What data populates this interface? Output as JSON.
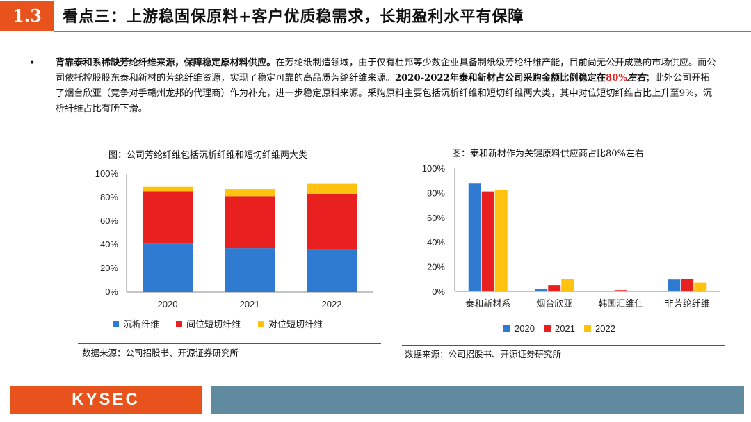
{
  "header": {
    "section": "1.3",
    "title": "看点三：上游稳固保原料+客户优质稳需求，长期盈利水平有保障"
  },
  "bullet": {
    "dot": "•",
    "lead": "背靠泰和系稀缺芳纶纤维来源，保障稳定原材料供应。",
    "text1": "在芳纶纸制造领域，由于仅有杜邦等少数企业具备制纸级芳纶纤维产能，目前尚无公开成熟的市场供应。而公司依托控股股东泰和新材的芳纶纤维资源，实现了稳定可靠的高品质芳纶纤维来源。",
    "bold2": "2020-2022年泰和新材占公司采购金额比例稳定在",
    "highlight": "80%",
    "italic2": "左右",
    "text2": "；此外公司开拓了烟台欣亚（竞争对手赣州龙邦的代理商）作为补充，进一步稳定原料来源。采购原料主要包括沉析纤维和短切纤维两大类，其中对位短切纤维占比上升至9%，沉析纤维占比有所下滑。"
  },
  "left_chart": {
    "caption": "图：公司芳纶纤维包括沉析纤维和短切纤维两大类",
    "source": "数据来源：公司招股书、开源证券研究所"
  },
  "right_chart": {
    "caption": "图：泰和新材作为关键原料供应商占比80%左右",
    "source": "数据来源：公司招股书、开源证券研究所"
  },
  "footer": {
    "logo": "KYSEC"
  },
  "colors": {
    "blue": "#2e7bd1",
    "red": "#e82020",
    "yellow": "#ffc20e",
    "accent": "#e8521c"
  },
  "chart_data": [
    {
      "type": "bar",
      "stacked": true,
      "title": "图：公司芳纶纤维包括沉析纤维和短切纤维两大类",
      "categories": [
        "2020",
        "2021",
        "2022"
      ],
      "series": [
        {
          "name": "沉析纤维",
          "color": "#2e7bd1",
          "values": [
            41,
            37,
            36
          ]
        },
        {
          "name": "间位短切纤维",
          "color": "#e82020",
          "values": [
            44,
            44,
            47
          ]
        },
        {
          "name": "对位短切纤维",
          "color": "#ffc20e",
          "values": [
            4,
            6,
            9
          ]
        }
      ],
      "ylim": [
        0,
        100
      ],
      "yticks": [
        "0%",
        "20%",
        "40%",
        "60%",
        "80%",
        "100%"
      ],
      "legend": "bottom",
      "grid": false
    },
    {
      "type": "bar",
      "stacked": false,
      "title": "图：泰和新材作为关键原料供应商占比80%左右",
      "categories": [
        "泰和新材系",
        "烟台欣亚",
        "韩国汇维仕",
        "非芳纶纤维"
      ],
      "series": [
        {
          "name": "2020",
          "color": "#2e7bd1",
          "values": [
            88,
            2,
            0,
            9.5
          ]
        },
        {
          "name": "2021",
          "color": "#e82020",
          "values": [
            81,
            5,
            1,
            10
          ]
        },
        {
          "name": "2022",
          "color": "#ffc20e",
          "values": [
            82,
            10,
            0,
            7
          ]
        }
      ],
      "ylim": [
        0,
        100
      ],
      "yticks": [
        "0%",
        "20%",
        "40%",
        "60%",
        "80%",
        "100%"
      ],
      "legend": "bottom",
      "grid": false
    }
  ]
}
